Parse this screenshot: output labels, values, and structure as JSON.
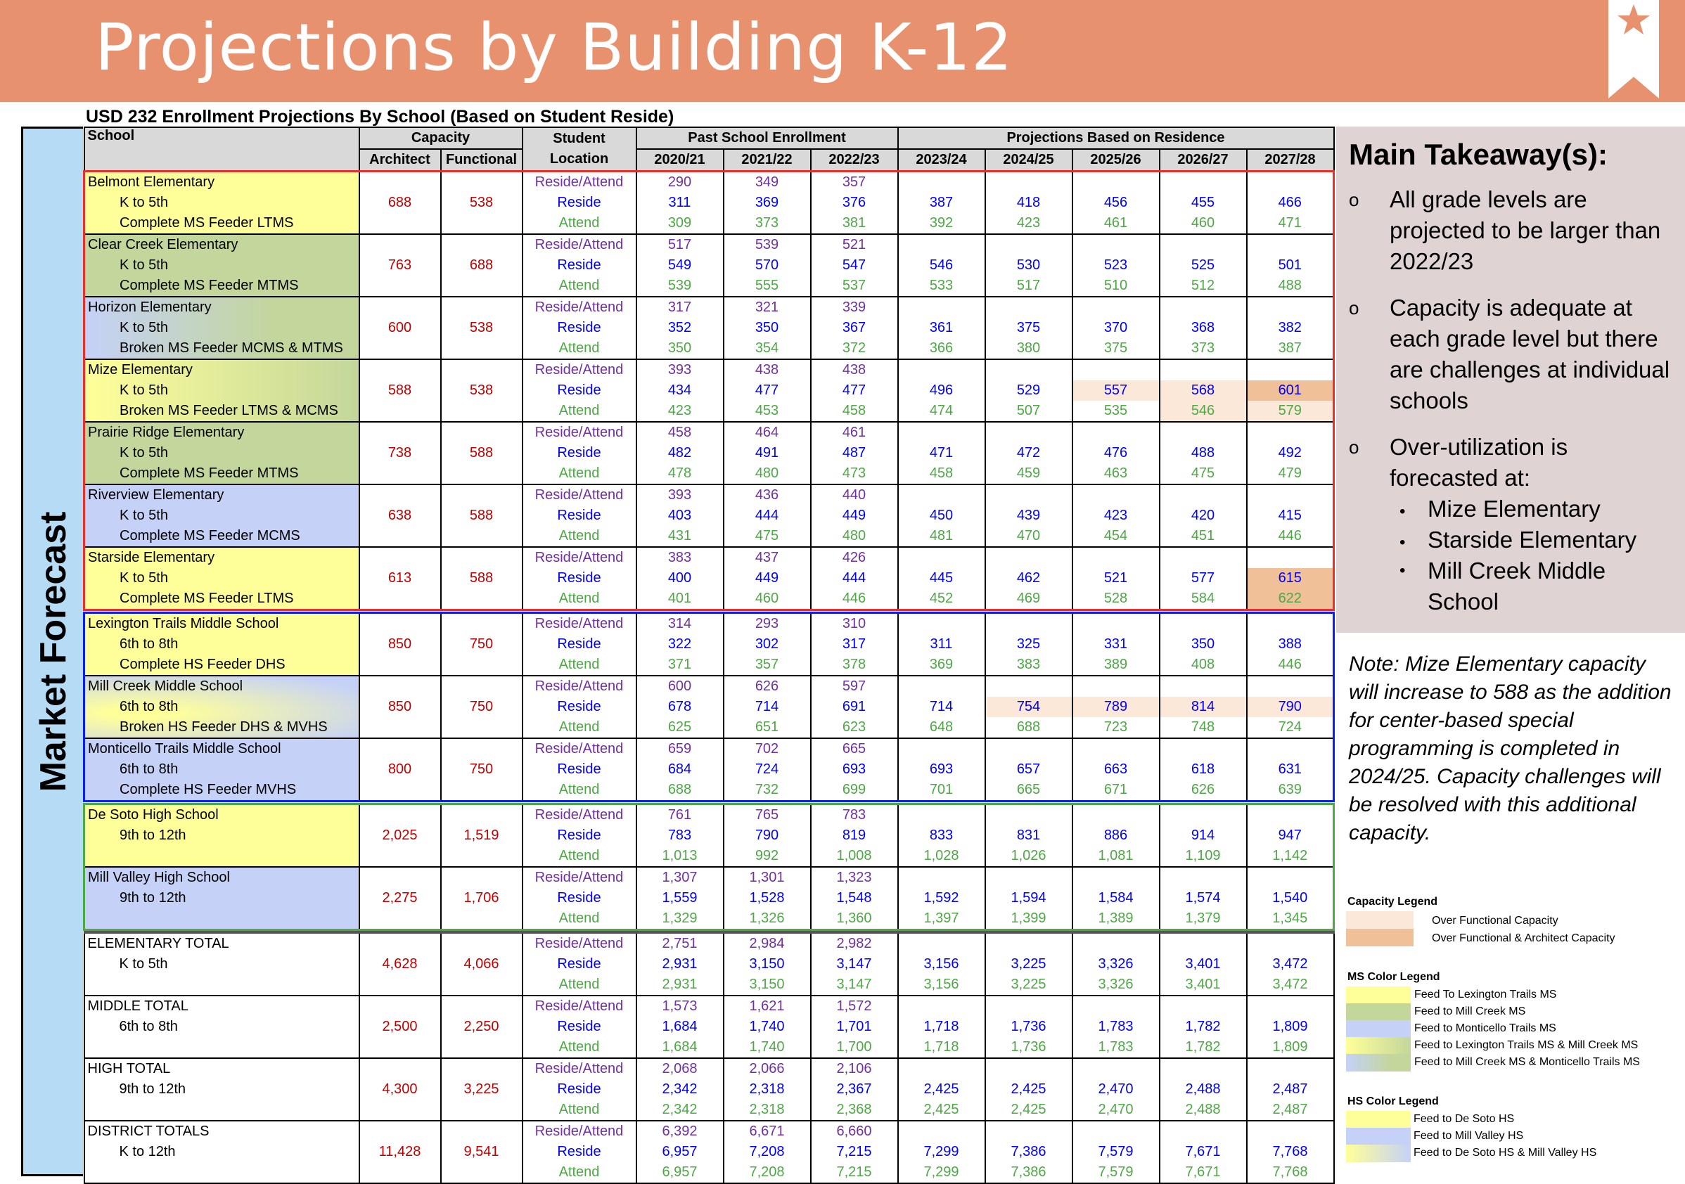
{
  "header": {
    "title": "Projections by Building K-12"
  },
  "subtitle": "USD 232 Enrollment Projections By School (Based on Student Reside)",
  "side_label": "Market Forecast",
  "table": {
    "headers": {
      "school": "School",
      "capacity": "Capacity",
      "architect": "Architect",
      "functional": "Functional",
      "student": "Student",
      "location": "Location",
      "past": "Past School Enrollment",
      "proj": "Projections Based on Residence",
      "past_years": [
        "2020/21",
        "2021/22",
        "2022/23"
      ],
      "proj_years": [
        "2023/24",
        "2024/25",
        "2025/26",
        "2026/27",
        "2027/28"
      ]
    },
    "loc_labels": {
      "ra": "Reside/Attend",
      "r": "Reside",
      "a": "Attend"
    },
    "groups": [
      {
        "border": "red",
        "rows": [
          {
            "name": "Belmont Elementary",
            "grade": "K to 5th",
            "feeder": "Complete MS Feeder LTMS",
            "bg": "lt",
            "architect": "688",
            "functional": "538",
            "ra": [
              "290",
              "349",
              "357"
            ],
            "r": [
              "311",
              "369",
              "376"
            ],
            "a": [
              "309",
              "373",
              "381"
            ],
            "pr": [
              "387",
              "418",
              "456",
              "455",
              "466"
            ],
            "pa": [
              "392",
              "423",
              "461",
              "460",
              "471"
            ]
          },
          {
            "name": "Clear Creek Elementary",
            "grade": "K to 5th",
            "feeder": "Complete MS Feeder MTMS",
            "bg": "mc",
            "architect": "763",
            "functional": "688",
            "ra": [
              "517",
              "539",
              "521"
            ],
            "r": [
              "549",
              "570",
              "547"
            ],
            "a": [
              "539",
              "555",
              "537"
            ],
            "pr": [
              "546",
              "530",
              "523",
              "525",
              "501"
            ],
            "pa": [
              "533",
              "517",
              "510",
              "512",
              "488"
            ]
          },
          {
            "name": "Horizon Elementary",
            "grade": "K to 5th",
            "feeder": "Broken MS Feeder MCMS & MTMS",
            "bg": "mc_mt",
            "architect": "600",
            "functional": "538",
            "ra": [
              "317",
              "321",
              "339"
            ],
            "r": [
              "352",
              "350",
              "367"
            ],
            "a": [
              "350",
              "354",
              "372"
            ],
            "pr": [
              "361",
              "375",
              "370",
              "368",
              "382"
            ],
            "pa": [
              "366",
              "380",
              "375",
              "373",
              "387"
            ]
          },
          {
            "name": "Mize Elementary",
            "grade": "K to 5th",
            "feeder": "Broken MS Feeder LTMS & MCMS",
            "bg": "lt_mc",
            "architect": "588",
            "functional": "538",
            "ra": [
              "393",
              "438",
              "438"
            ],
            "r": [
              "434",
              "477",
              "477"
            ],
            "a": [
              "423",
              "453",
              "458"
            ],
            "pr": [
              "496",
              "529",
              "557",
              "568",
              "601"
            ],
            "pa": [
              "474",
              "507",
              "535",
              "546",
              "579"
            ],
            "hl_r": [
              "",
              "",
              "f",
              "f",
              "fa"
            ],
            "hl_a": [
              "",
              "",
              "",
              "f",
              "f"
            ]
          },
          {
            "name": "Prairie Ridge Elementary",
            "grade": "K to 5th",
            "feeder": "Complete MS Feeder MTMS",
            "bg": "mc",
            "architect": "738",
            "functional": "588",
            "ra": [
              "458",
              "464",
              "461"
            ],
            "r": [
              "482",
              "491",
              "487"
            ],
            "a": [
              "478",
              "480",
              "473"
            ],
            "pr": [
              "471",
              "472",
              "476",
              "488",
              "492"
            ],
            "pa": [
              "458",
              "459",
              "463",
              "475",
              "479"
            ]
          },
          {
            "name": "Riverview Elementary",
            "grade": "K to 5th",
            "feeder": "Complete MS Feeder MCMS",
            "bg": "mt",
            "architect": "638",
            "functional": "588",
            "ra": [
              "393",
              "436",
              "440"
            ],
            "r": [
              "403",
              "444",
              "449"
            ],
            "a": [
              "431",
              "475",
              "480"
            ],
            "pr": [
              "450",
              "439",
              "423",
              "420",
              "415"
            ],
            "pa": [
              "481",
              "470",
              "454",
              "451",
              "446"
            ]
          },
          {
            "name": "Starside Elementary",
            "grade": "K to 5th",
            "feeder": "Complete MS Feeder LTMS",
            "bg": "lt",
            "architect": "613",
            "functional": "588",
            "ra": [
              "383",
              "437",
              "426"
            ],
            "r": [
              "400",
              "449",
              "444"
            ],
            "a": [
              "401",
              "460",
              "446"
            ],
            "pr": [
              "445",
              "462",
              "521",
              "577",
              "615"
            ],
            "pa": [
              "452",
              "469",
              "528",
              "584",
              "622"
            ],
            "hl_r": [
              "",
              "",
              "",
              "",
              "fa"
            ],
            "hl_a": [
              "",
              "",
              "",
              "",
              "fa"
            ]
          }
        ]
      },
      {
        "border": "blue",
        "rows": [
          {
            "name": "Lexington Trails Middle School",
            "grade": "6th to 8th",
            "feeder": "Complete HS Feeder DHS",
            "bg": "lt",
            "architect": "850",
            "functional": "750",
            "ra": [
              "314",
              "293",
              "310"
            ],
            "r": [
              "322",
              "302",
              "317"
            ],
            "a": [
              "371",
              "357",
              "378"
            ],
            "pr": [
              "311",
              "325",
              "331",
              "350",
              "388"
            ],
            "pa": [
              "369",
              "383",
              "389",
              "408",
              "446"
            ]
          },
          {
            "name": "Mill Creek Middle School",
            "grade": "6th to 8th",
            "feeder": "Broken HS Feeder DHS & MVHS",
            "bg": "ds_mv",
            "architect": "850",
            "functional": "750",
            "ra": [
              "600",
              "626",
              "597"
            ],
            "r": [
              "678",
              "714",
              "691"
            ],
            "a": [
              "625",
              "651",
              "623"
            ],
            "pr": [
              "714",
              "754",
              "789",
              "814",
              "790"
            ],
            "pa": [
              "648",
              "688",
              "723",
              "748",
              "724"
            ],
            "hl_r": [
              "",
              "f",
              "f",
              "f",
              "f"
            ]
          },
          {
            "name": "Monticello Trails Middle School",
            "grade": "6th to 8th",
            "feeder": "Complete HS Feeder MVHS",
            "bg": "mt",
            "architect": "800",
            "functional": "750",
            "ra": [
              "659",
              "702",
              "665"
            ],
            "r": [
              "684",
              "724",
              "693"
            ],
            "a": [
              "688",
              "732",
              "699"
            ],
            "pr": [
              "693",
              "657",
              "663",
              "618",
              "631"
            ],
            "pa": [
              "701",
              "665",
              "671",
              "626",
              "639"
            ]
          }
        ]
      },
      {
        "border": "green",
        "rows": [
          {
            "name": "De Soto High School",
            "grade": "9th to 12th",
            "feeder": "",
            "bg": "lt",
            "architect": "2,025",
            "functional": "1,519",
            "ra": [
              "761",
              "765",
              "783"
            ],
            "r": [
              "783",
              "790",
              "819"
            ],
            "a": [
              "1,013",
              "992",
              "1,008"
            ],
            "pr": [
              "833",
              "831",
              "886",
              "914",
              "947"
            ],
            "pa": [
              "1,028",
              "1,026",
              "1,081",
              "1,109",
              "1,142"
            ]
          },
          {
            "name": "Mill Valley High School",
            "grade": "9th to 12th",
            "feeder": "",
            "bg": "mt",
            "architect": "2,275",
            "functional": "1,706",
            "ra": [
              "1,307",
              "1,301",
              "1,323"
            ],
            "r": [
              "1,559",
              "1,528",
              "1,548"
            ],
            "a": [
              "1,329",
              "1,326",
              "1,360"
            ],
            "pr": [
              "1,592",
              "1,594",
              "1,584",
              "1,574",
              "1,540"
            ],
            "pa": [
              "1,397",
              "1,399",
              "1,389",
              "1,379",
              "1,345"
            ]
          }
        ]
      },
      {
        "border": "tot",
        "rows": [
          {
            "name": "ELEMENTARY TOTAL",
            "grade": "K to 5th",
            "feeder": "",
            "bg": "none",
            "architect": "4,628",
            "functional": "4,066",
            "ra": [
              "2,751",
              "2,984",
              "2,982"
            ],
            "r": [
              "2,931",
              "3,150",
              "3,147"
            ],
            "a": [
              "2,931",
              "3,150",
              "3,147"
            ],
            "pr": [
              "3,156",
              "3,225",
              "3,326",
              "3,401",
              "3,472"
            ],
            "pa": [
              "3,156",
              "3,225",
              "3,326",
              "3,401",
              "3,472"
            ]
          },
          {
            "name": "MIDDLE TOTAL",
            "grade": "6th to 8th",
            "feeder": "",
            "bg": "none",
            "architect": "2,500",
            "functional": "2,250",
            "ra": [
              "1,573",
              "1,621",
              "1,572"
            ],
            "r": [
              "1,684",
              "1,740",
              "1,701"
            ],
            "a": [
              "1,684",
              "1,740",
              "1,700"
            ],
            "pr": [
              "1,718",
              "1,736",
              "1,783",
              "1,782",
              "1,809"
            ],
            "pa": [
              "1,718",
              "1,736",
              "1,783",
              "1,782",
              "1,809"
            ]
          },
          {
            "name": "HIGH TOTAL",
            "grade": "9th to 12th",
            "feeder": "",
            "bg": "none",
            "architect": "4,300",
            "functional": "3,225",
            "ra": [
              "2,068",
              "2,066",
              "2,106"
            ],
            "r": [
              "2,342",
              "2,318",
              "2,367"
            ],
            "a": [
              "2,342",
              "2,318",
              "2,368"
            ],
            "pr": [
              "2,425",
              "2,425",
              "2,470",
              "2,488",
              "2,487"
            ],
            "pa": [
              "2,425",
              "2,425",
              "2,470",
              "2,488",
              "2,487"
            ]
          },
          {
            "name": "DISTRICT TOTALS",
            "grade": "K to 12th",
            "feeder": "",
            "bg": "none",
            "architect": "11,428",
            "functional": "9,541",
            "ra": [
              "6,392",
              "6,671",
              "6,660"
            ],
            "r": [
              "6,957",
              "7,208",
              "7,215"
            ],
            "a": [
              "6,957",
              "7,208",
              "7,215"
            ],
            "pr": [
              "7,299",
              "7,386",
              "7,579",
              "7,671",
              "7,768"
            ],
            "pa": [
              "7,299",
              "7,386",
              "7,579",
              "7,671",
              "7,768"
            ]
          }
        ]
      }
    ]
  },
  "takeaways": {
    "title": "Main Takeaway(s):",
    "bullet_marker": "o",
    "sub_marker": "•",
    "items": [
      "All grade levels are projected to be larger than 2022/23",
      "Capacity is adequate at each grade level but there are challenges at individual schools",
      "Over-utilization is forecasted at:"
    ],
    "sub_items": [
      "Mize Elementary",
      "Starside Elementary",
      "Mill Creek Middle School"
    ]
  },
  "note": "Note: Mize Elementary capacity will increase to 588 as the addition for center-based special programming is completed in 2024/25. Capacity challenges will be resolved with this additional capacity.",
  "legends": {
    "capacity": {
      "title": "Capacity Legend",
      "items": [
        "Over Functional Capacity",
        "Over Functional & Architect Capacity"
      ]
    },
    "ms": {
      "title": "MS Color Legend",
      "items": [
        "Feed To Lexington Trails MS",
        "Feed to Mill Creek MS",
        "Feed to Monticello Trails MS",
        "Feed to Lexington Trails MS & Mill Creek MS",
        "Feed to Mill Creek MS & Monticello Trails MS"
      ]
    },
    "hs": {
      "title": "HS Color Legend",
      "items": [
        "Feed to De Soto HS",
        "Feed to Mill Valley HS",
        "Feed to De Soto HS & Mill Valley HS"
      ]
    }
  },
  "colors": {
    "banner": "#e8916e",
    "over_functional": "#fbe8d8",
    "over_both": "#f0c198",
    "reside_attend": "#7030a0",
    "reside": "#0000ff",
    "attend": "#4ea845",
    "capacity": "#c00000"
  }
}
